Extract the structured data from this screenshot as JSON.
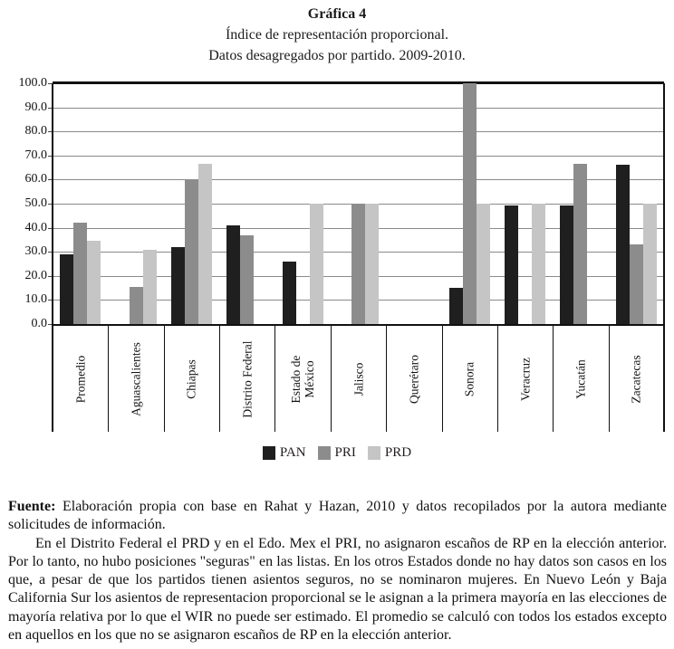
{
  "figure": {
    "title": "Gráfica 4",
    "subtitle_line1": "Índice de representación proporcional.",
    "subtitle_line2": "Datos desagregados por partido. 2009-2010."
  },
  "chart_data": {
    "type": "bar",
    "title": "Gráfica 4",
    "subtitle": "Índice de representación proporcional. Datos desagregados por partido. 2009-2010.",
    "categories": [
      "Promedio",
      "Aguascalientes",
      "Chiapas",
      "Distrito Federal",
      "Estado de\nMéxico",
      "Jalisco",
      "Querétaro",
      "Sonora",
      "Veracruz",
      "Yucatán",
      "Zacatecas"
    ],
    "series": [
      {
        "name": "PAN",
        "color": "#1f1f1f",
        "values": [
          29,
          null,
          32,
          41,
          26,
          null,
          null,
          15,
          49.4,
          49.4,
          66
        ]
      },
      {
        "name": "PRI",
        "color": "#8c8c8c",
        "values": [
          42,
          15.4,
          60,
          37,
          null,
          50,
          null,
          100,
          null,
          66.7,
          33
        ]
      },
      {
        "name": "PRD",
        "color": "#c5c5c5",
        "values": [
          34.6,
          30.8,
          66.7,
          null,
          50,
          50,
          null,
          50,
          50,
          null,
          50
        ]
      }
    ],
    "xlabel": "",
    "ylabel": "",
    "ylim": [
      0,
      100
    ],
    "ytick_step": 10,
    "ytick_labels": [
      "0.0",
      "10.0",
      "20.0",
      "30.0",
      "40.0",
      "50.0",
      "60.0",
      "70.0",
      "80.0",
      "90.0",
      "100.0"
    ],
    "grid": true,
    "legend_position": "bottom"
  },
  "footer": {
    "source_label": "Fuente:",
    "source_text": " Elaboración propia con base en Rahat y Hazan, 2010 y datos recopilados por la autora mediante solicitudes de información.",
    "note_text": "En el Distrito Federal el PRD y en el Edo. Mex el PRI, no asignaron escaños de RP en la elección anterior. Por lo tanto, no hubo posiciones \"seguras\" en las listas. En los otros Estados donde no hay datos son casos en los que, a pesar de que los partidos tienen asientos seguros, no se nominaron mujeres. En Nuevo León y Baja California Sur los asientos de representacion proporcional se le asignan a la primera mayoría en las elecciones de mayoría relativa por lo que el WIR no puede ser estimado. El promedio se calculó con todos los estados excepto en aquellos en los que no se asignaron escaños de RP en la elección anterior."
  }
}
